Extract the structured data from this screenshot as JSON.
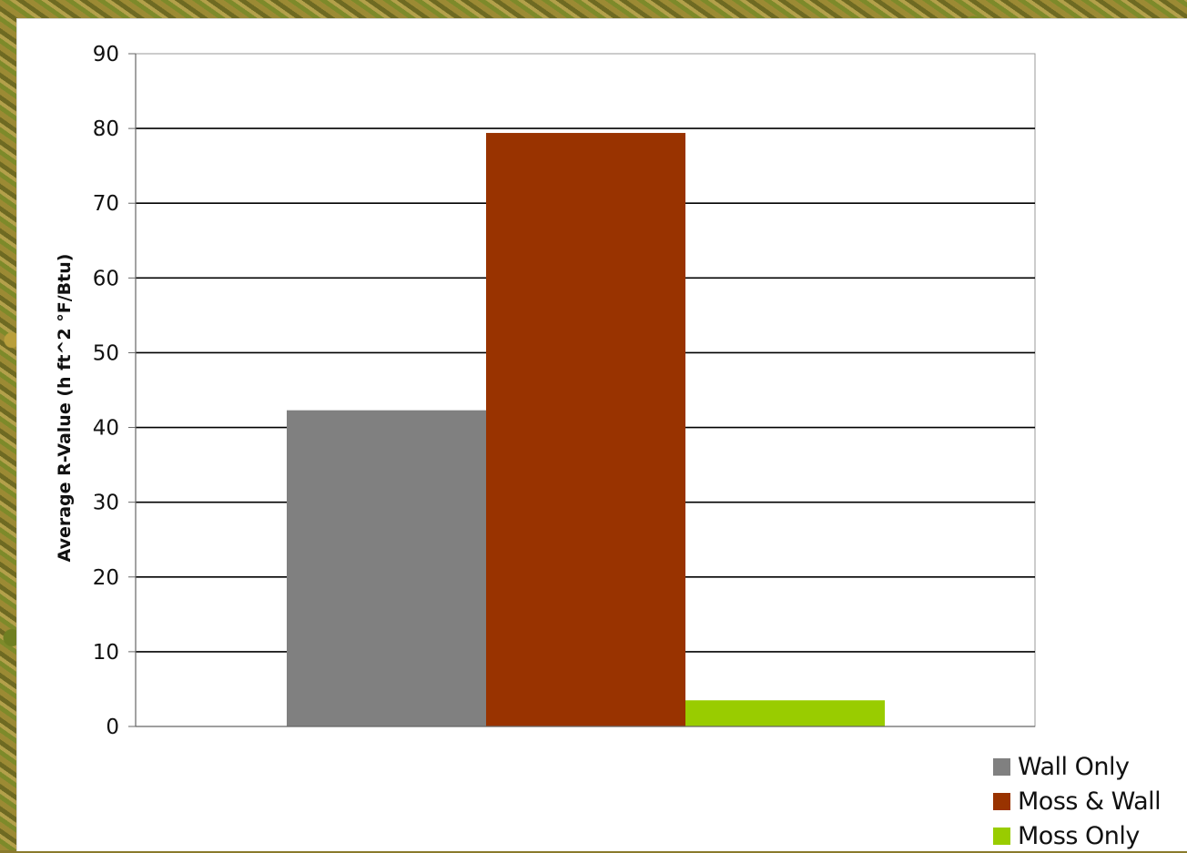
{
  "chart_data": {
    "type": "bar",
    "ylabel": "Average R-Value (h ft^2 °F/Btu)",
    "ylim": [
      0,
      90
    ],
    "ytick_step": 10,
    "grid": true,
    "legend_position": "bottom-right",
    "series": [
      {
        "name": "Wall Only",
        "value": 42.3,
        "color": "#808080"
      },
      {
        "name": "Moss & Wall",
        "value": 79.4,
        "color": "#993300"
      },
      {
        "name": "Moss Only",
        "value": 3.5,
        "color": "#99cc00"
      }
    ]
  }
}
